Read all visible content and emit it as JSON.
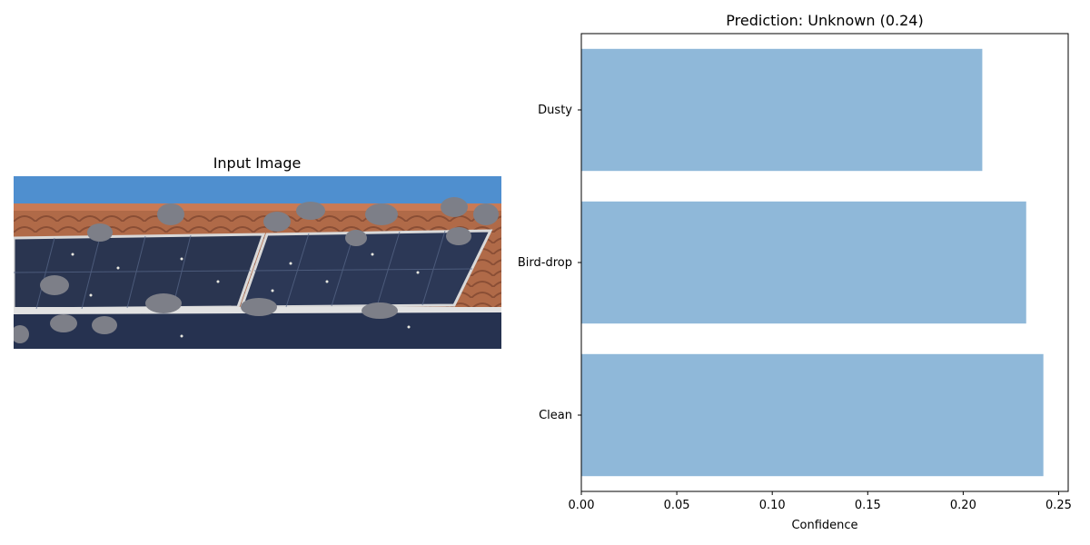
{
  "input_panel": {
    "title": "Input Image",
    "photo": {
      "sky_color": "#4f8fcf",
      "roof_color": "#b06a48",
      "panel_color": "#2a3550",
      "frame_color": "#d9d9d9",
      "bird_color": "#7d7f88"
    }
  },
  "chart_data": {
    "type": "bar",
    "orientation": "horizontal",
    "title": "Prediction: Unknown (0.24)",
    "xlabel": "Confidence",
    "ylabel": "",
    "categories": [
      "Clean",
      "Bird-drop",
      "Dusty"
    ],
    "values": [
      0.242,
      0.233,
      0.21
    ],
    "xlim": [
      0,
      0.255
    ],
    "xticks": [
      "0.00",
      "0.05",
      "0.10",
      "0.15",
      "0.20",
      "0.25"
    ],
    "xtick_values": [
      0,
      0.05,
      0.1,
      0.15,
      0.2,
      0.25
    ],
    "bar_color": "#8fb8d9",
    "grid": false
  }
}
